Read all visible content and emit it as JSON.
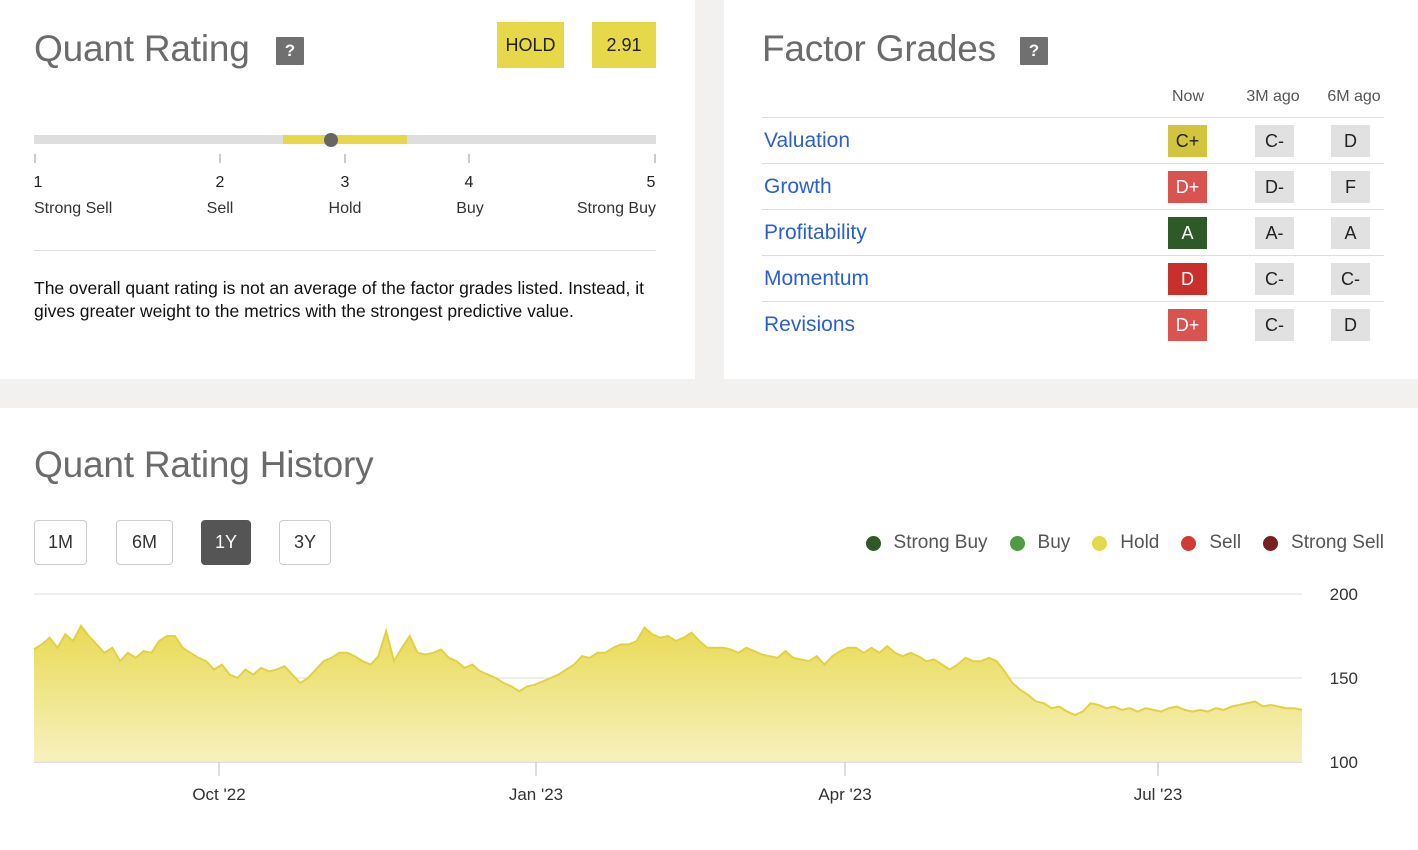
{
  "quant_rating": {
    "title": "Quant Rating",
    "help": "?",
    "rating_label": "HOLD",
    "score": "2.91",
    "score_value": 2.91,
    "scale": [
      {
        "num": "1",
        "label": "Strong Sell"
      },
      {
        "num": "2",
        "label": "Sell"
      },
      {
        "num": "3",
        "label": "Hold"
      },
      {
        "num": "4",
        "label": "Buy"
      },
      {
        "num": "5",
        "label": "Strong Buy"
      }
    ],
    "note": "The overall quant rating is not an average of the factor grades listed. Instead, it gives greater weight to the metrics with the strongest predictive value."
  },
  "factor_grades": {
    "title": "Factor Grades",
    "help": "?",
    "columns": [
      "Now",
      "3M ago",
      "6M ago"
    ],
    "rows": [
      {
        "name": "Valuation",
        "now": "C+",
        "now_color": "#d2c43c",
        "m3": "C-",
        "m6": "D"
      },
      {
        "name": "Growth",
        "now": "D+",
        "now_color": "#d9534f",
        "m3": "D-",
        "m6": "F"
      },
      {
        "name": "Profitability",
        "now": "A",
        "now_color": "#2d5a27",
        "m3": "A-",
        "m6": "A"
      },
      {
        "name": "Momentum",
        "now": "D",
        "now_color": "#c9302c",
        "m3": "C-",
        "m6": "C-"
      },
      {
        "name": "Revisions",
        "now": "D+",
        "now_color": "#d9534f",
        "m3": "C-",
        "m6": "D"
      }
    ]
  },
  "history": {
    "title": "Quant Rating History",
    "ranges": [
      "1M",
      "6M",
      "1Y",
      "3Y"
    ],
    "active_range": "1Y",
    "legend": [
      {
        "label": "Strong Buy",
        "color": "#2d5a27"
      },
      {
        "label": "Buy",
        "color": "#4f9a43"
      },
      {
        "label": "Hold",
        "color": "#e7d84a"
      },
      {
        "label": "Sell",
        "color": "#d23b35"
      },
      {
        "label": "Strong Sell",
        "color": "#7a1f1f"
      }
    ]
  },
  "chart_data": {
    "type": "area",
    "x_ticks": [
      "Oct '22",
      "Jan '23",
      "Apr '23",
      "Jul '23"
    ],
    "y_ticks": [
      "200",
      "150",
      "100"
    ],
    "ylim": [
      100,
      200
    ],
    "grid": "horizontal",
    "series": [
      {
        "color": "#e7d84a",
        "values": [
          167,
          170,
          174,
          168,
          176,
          172,
          181,
          175,
          170,
          165,
          168,
          160,
          165,
          162,
          166,
          165,
          172,
          175,
          175,
          168,
          165,
          162,
          160,
          155,
          158,
          152,
          150,
          155,
          152,
          156,
          154,
          155,
          157,
          152,
          147,
          150,
          155,
          160,
          162,
          165,
          165,
          163,
          160,
          158,
          163,
          178,
          160,
          168,
          175,
          165,
          164,
          165,
          167,
          162,
          160,
          156,
          158,
          154,
          152,
          150,
          147,
          145,
          142,
          145,
          146,
          148,
          150,
          152,
          155,
          158,
          163,
          162,
          165,
          165,
          168,
          170,
          170,
          172,
          180,
          176,
          174,
          175,
          172,
          174,
          177,
          172,
          168,
          168,
          168,
          167,
          165,
          168,
          166,
          164,
          163,
          162,
          166,
          162,
          161,
          160,
          163,
          158,
          163,
          166,
          168,
          168,
          165,
          168,
          165,
          169,
          165,
          163,
          165,
          163,
          160,
          161,
          158,
          155,
          158,
          162,
          160,
          160,
          162,
          160,
          154,
          147,
          143,
          140,
          136,
          135,
          132,
          133,
          130,
          128,
          130,
          135,
          134,
          132,
          133,
          131,
          132,
          130,
          132,
          131,
          130,
          132,
          133,
          131,
          130,
          131,
          130,
          132,
          131,
          133,
          134,
          135,
          136,
          133,
          134,
          133,
          132,
          132,
          131
        ]
      }
    ]
  }
}
